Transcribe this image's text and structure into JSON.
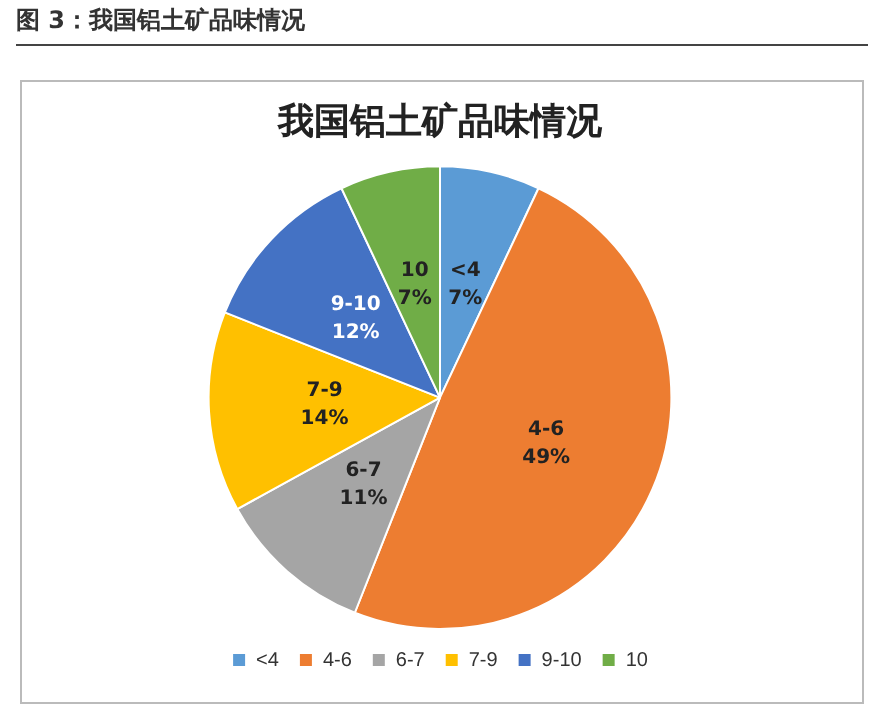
{
  "chart_data": {
    "type": "pie",
    "title": "我国铝土矿品味情况",
    "annotations": [
      "图 3：我国铝土矿品味情况"
    ],
    "categories": [
      "<4",
      "4-6",
      "6-7",
      "7-9",
      "9-10",
      "10"
    ],
    "values": [
      7,
      49,
      11,
      14,
      12,
      7
    ],
    "colors": [
      "#5b9bd5",
      "#ed7d31",
      "#a5a5a5",
      "#ffc000",
      "#4472c4",
      "#70ad47"
    ],
    "value_labels": [
      "7%",
      "49%",
      "11%",
      "14%",
      "12%",
      "7%"
    ],
    "legend": "bottom"
  }
}
